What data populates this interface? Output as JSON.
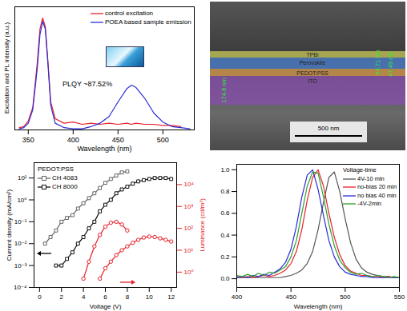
{
  "chart_data": [
    {
      "type": "line",
      "x_label": "Wavelength (nm)",
      "y_label": "Excitation and PL intensity (a.u.)",
      "annotations": [
        "PLQY ~87.52%"
      ],
      "xlim": [
        335,
        535
      ],
      "xticks": [
        350,
        400,
        450,
        500
      ],
      "ylim": [
        0,
        1.1
      ],
      "tick_labels": "x",
      "legend": "upper right",
      "x": [
        340,
        345,
        350,
        355,
        360,
        363,
        366,
        369,
        372,
        375,
        380,
        390,
        400,
        410,
        420,
        430,
        440,
        450,
        460,
        465,
        470,
        480,
        490,
        500,
        510,
        520,
        530
      ],
      "series": [
        {
          "name": "control excitation",
          "color": "#e8202a",
          "values": [
            0.02,
            0.03,
            0.08,
            0.2,
            0.6,
            0.9,
            1.0,
            0.92,
            0.6,
            0.25,
            0.1,
            0.06,
            0.07,
            0.05,
            0.06,
            0.05,
            0.06,
            0.05,
            0.06,
            0.05,
            0.06,
            0.05,
            0.05,
            0.04,
            0.04,
            0.03,
            null
          ]
        },
        {
          "name": "POEA based sample emission",
          "color": "#2b2bd9",
          "values": [
            0.01,
            0.02,
            0.06,
            0.18,
            0.55,
            0.85,
            0.97,
            0.9,
            0.58,
            0.22,
            0.06,
            0.02,
            0.01,
            0.01,
            0.03,
            0.06,
            0.12,
            0.25,
            0.37,
            0.4,
            0.38,
            0.28,
            0.15,
            0.07,
            0.03,
            0.02,
            0.01
          ]
        }
      ]
    },
    {
      "type": "image",
      "layers": [
        "TPBi",
        "Perovskite",
        "PEDOT:PSS",
        "ITO"
      ],
      "measurements": [
        "174.8 nm",
        "94.71 nm",
        "47.49 nm"
      ],
      "scale_bar": "500 nm"
    },
    {
      "type": "line",
      "x_label": "Voltage (V)",
      "y_label": "Current density (mA/cm²)",
      "y2_label": "Luminance (cd/m²)",
      "legend_title": "PEDOT:PSS",
      "legend": "upper left",
      "log": "y",
      "xlim": [
        -0.5,
        12.5
      ],
      "xticks": [
        0,
        2,
        4,
        6,
        8,
        10,
        12
      ],
      "ylim": [
        0.0001,
        50
      ],
      "yticks": [
        {
          "value": 0.0001,
          "label": "10⁻⁴"
        },
        {
          "value": 0.001,
          "label": "10⁻³"
        },
        {
          "value": 0.01,
          "label": "10⁻²"
        },
        {
          "value": 0.1,
          "label": "10⁻¹"
        },
        {
          "value": 1,
          "label": "10⁰"
        },
        {
          "value": 10,
          "label": "10¹"
        }
      ],
      "y2lim": [
        0.2,
        100000
      ],
      "y2ticks": [
        {
          "value": 1,
          "label": "10⁰"
        },
        {
          "value": 10,
          "label": "10¹"
        },
        {
          "value": 100,
          "label": "10²"
        },
        {
          "value": 1000,
          "label": "10³"
        },
        {
          "value": 10000,
          "label": "10⁴"
        }
      ],
      "series": [
        {
          "name": "CH 4083",
          "color": "#666666",
          "marker": "square",
          "x": [
            0.5,
            1,
            1.5,
            2,
            2.5,
            3,
            3.5,
            4,
            4.5,
            5,
            5.5,
            6,
            6.5,
            7,
            7.5,
            8
          ],
          "values": [
            0.01,
            0.02,
            0.04,
            0.1,
            0.15,
            0.2,
            0.4,
            0.7,
            1.2,
            2,
            3.5,
            6,
            9,
            13,
            18,
            20
          ]
        },
        {
          "name": "CH 8000",
          "color": "#111111",
          "marker": "square",
          "x": [
            1.5,
            2,
            2.5,
            3,
            3.5,
            4,
            4.5,
            5,
            5.5,
            6,
            6.5,
            7,
            7.5,
            8,
            8.5,
            9,
            9.5,
            10,
            10.5,
            11,
            11.5,
            12
          ],
          "values": [
            0.001,
            0.001,
            0.002,
            0.004,
            0.01,
            0.02,
            0.05,
            0.1,
            0.3,
            0.6,
            1,
            2,
            3,
            4,
            5.5,
            7,
            8,
            9,
            10,
            10,
            10,
            9
          ]
        },
        {
          "name": "CH 4083",
          "color": "#e8202a",
          "marker": "circle",
          "axis": "y2",
          "x": [
            4,
            4.5,
            5,
            5.5,
            6,
            6.5,
            7,
            7.5,
            8
          ],
          "values": [
            0.5,
            3,
            15,
            50,
            120,
            180,
            200,
            150,
            80
          ]
        },
        {
          "name": "CH 8000",
          "color": "#e8202a",
          "marker": "circle",
          "axis": "y2",
          "x": [
            5.5,
            6,
            6.5,
            7,
            7.5,
            8,
            8.5,
            9,
            9.5,
            10,
            10.5,
            11,
            11.5,
            12
          ],
          "values": [
            0.5,
            1.5,
            3,
            6,
            10,
            15,
            22,
            30,
            38,
            42,
            40,
            35,
            30,
            25
          ]
        }
      ]
    },
    {
      "type": "line",
      "x_label": "Wavelength (nm)",
      "legend_title": "Voltage-time",
      "legend": "upper right",
      "xlim": [
        400,
        550
      ],
      "xticks": [
        400,
        450,
        500,
        550
      ],
      "ylim": [
        -0.08,
        1.05
      ],
      "yticks": [
        {
          "value": 0,
          "label": "0.0"
        },
        {
          "value": 0.2,
          "label": "0.2"
        },
        {
          "value": 0.4,
          "label": "0.4"
        },
        {
          "value": 0.6,
          "label": "0.6"
        },
        {
          "value": 0.8,
          "label": "0.8"
        },
        {
          "value": 1,
          "label": "1.0"
        }
      ],
      "x": [
        400,
        405,
        410,
        415,
        420,
        425,
        430,
        435,
        440,
        445,
        450,
        455,
        460,
        465,
        470,
        475,
        480,
        485,
        490,
        495,
        500,
        505,
        510,
        515,
        520,
        525,
        530,
        535,
        540,
        545,
        550
      ],
      "series": [
        {
          "name": "4V-10 min",
          "color": "#555555",
          "values": [
            0.01,
            0.01,
            0.01,
            0.01,
            0.01,
            0.01,
            0.01,
            0.01,
            0.01,
            0.02,
            0.03,
            0.05,
            0.08,
            0.14,
            0.25,
            0.45,
            0.7,
            0.93,
            0.98,
            0.8,
            0.55,
            0.33,
            0.18,
            0.1,
            0.06,
            0.04,
            0.03,
            0.02,
            0.02,
            0.01,
            0.01
          ]
        },
        {
          "name": "no-bias 20 min",
          "color": "#e8202a",
          "values": [
            0.02,
            0.01,
            0.02,
            0.01,
            0.02,
            0.03,
            0.02,
            0.03,
            0.05,
            0.08,
            0.14,
            0.25,
            0.45,
            0.72,
            0.93,
            1.0,
            0.85,
            0.6,
            0.38,
            0.22,
            0.12,
            0.07,
            0.05,
            0.03,
            0.03,
            0.02,
            0.02,
            0.01,
            0.02,
            0.01,
            0.01
          ]
        },
        {
          "name": "no bias 40 min",
          "color": "#2b2bd9",
          "values": [
            0.01,
            0.02,
            0.01,
            0.03,
            0.02,
            0.04,
            0.03,
            0.06,
            0.09,
            0.15,
            0.27,
            0.48,
            0.75,
            0.95,
            1.0,
            0.82,
            0.58,
            0.35,
            0.2,
            0.11,
            0.06,
            0.04,
            0.03,
            0.02,
            0.02,
            0.01,
            0.01,
            0.01,
            0.01,
            0.01,
            0.01
          ]
        },
        {
          "name": "-4V-2min",
          "color": "#2ca02c",
          "values": [
            0.03,
            0.02,
            0.04,
            0.02,
            0.05,
            0.03,
            0.06,
            0.05,
            0.08,
            0.11,
            0.2,
            0.35,
            0.6,
            0.85,
            0.98,
            0.97,
            0.75,
            0.5,
            0.3,
            0.17,
            0.1,
            0.06,
            0.04,
            0.05,
            0.03,
            0.02,
            0.03,
            0.02,
            0.01,
            0.02,
            0.01
          ]
        }
      ]
    }
  ]
}
